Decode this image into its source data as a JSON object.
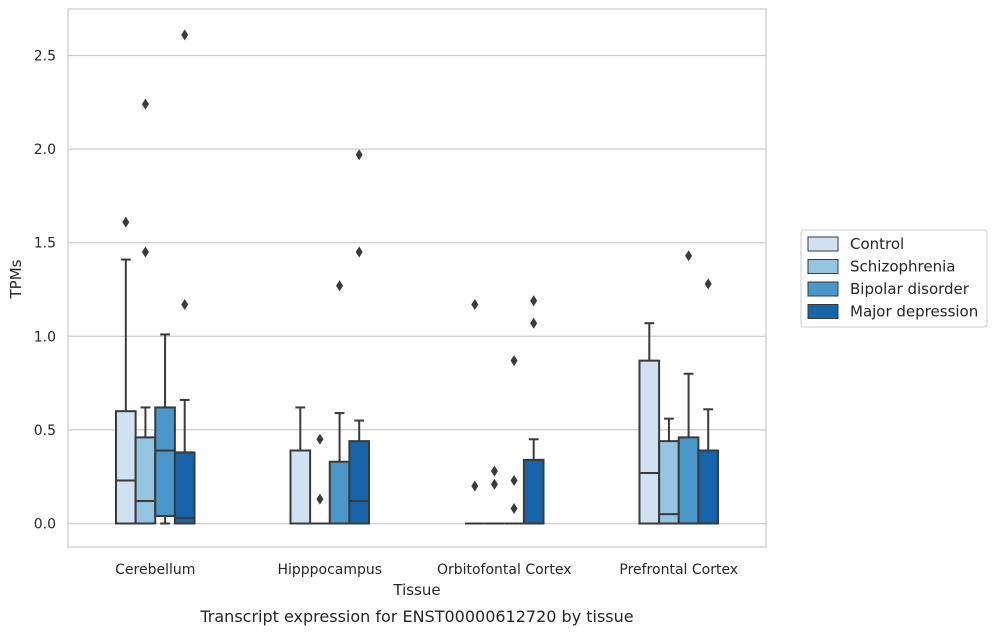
{
  "caption": "Transcript expression for ENST00000612720 by tissue",
  "chart_data": {
    "type": "box",
    "xlabel": "Tissue",
    "ylabel": "TPMs",
    "ylim": [
      -0.13,
      2.75
    ],
    "yticks": [
      "0.0",
      "0.5",
      "1.0",
      "1.5",
      "2.0",
      "2.5"
    ],
    "grid": true,
    "legend_position": "right",
    "categories": [
      "Cerebellum",
      "Hipppocampus",
      "Orbitofontal Cortex",
      "Prefrontal Cortex"
    ],
    "series": [
      {
        "name": "Control",
        "color": "#d0e1f2",
        "boxes": [
          {
            "whislo": 0.0,
            "q1": 0.0,
            "med": 0.23,
            "q3": 0.6,
            "whishi": 1.41,
            "fliers": [
              1.61
            ]
          },
          {
            "whislo": 0.0,
            "q1": 0.0,
            "med": 0.0,
            "q3": 0.39,
            "whishi": 0.62,
            "fliers": []
          },
          {
            "whislo": 0.0,
            "q1": 0.0,
            "med": 0.0,
            "q3": 0.0,
            "whishi": 0.0,
            "fliers": [
              0.2,
              1.17
            ]
          },
          {
            "whislo": 0.0,
            "q1": 0.0,
            "med": 0.27,
            "q3": 0.87,
            "whishi": 1.07,
            "fliers": []
          }
        ]
      },
      {
        "name": "Schizophrenia",
        "color": "#94c4df",
        "boxes": [
          {
            "whislo": 0.0,
            "q1": 0.0,
            "med": 0.12,
            "q3": 0.46,
            "whishi": 0.62,
            "fliers": [
              1.45,
              2.24
            ]
          },
          {
            "whislo": 0.0,
            "q1": 0.0,
            "med": 0.0,
            "q3": 0.0,
            "whishi": 0.0,
            "fliers": [
              0.13,
              0.45
            ]
          },
          {
            "whislo": 0.0,
            "q1": 0.0,
            "med": 0.0,
            "q3": 0.0,
            "whishi": 0.0,
            "fliers": [
              0.21,
              0.28
            ]
          },
          {
            "whislo": 0.0,
            "q1": 0.0,
            "med": 0.05,
            "q3": 0.44,
            "whishi": 0.56,
            "fliers": []
          }
        ]
      },
      {
        "name": "Bipolar disorder",
        "color": "#4a98c9",
        "boxes": [
          {
            "whislo": 0.0,
            "q1": 0.04,
            "med": 0.39,
            "q3": 0.62,
            "whishi": 1.01,
            "fliers": []
          },
          {
            "whislo": 0.0,
            "q1": 0.0,
            "med": 0.0,
            "q3": 0.33,
            "whishi": 0.59,
            "fliers": [
              1.27
            ]
          },
          {
            "whislo": 0.0,
            "q1": 0.0,
            "med": 0.0,
            "q3": 0.0,
            "whishi": 0.0,
            "fliers": [
              0.08,
              0.23,
              0.87
            ]
          },
          {
            "whislo": 0.0,
            "q1": 0.0,
            "med": 0.0,
            "q3": 0.46,
            "whishi": 0.8,
            "fliers": [
              1.43
            ]
          }
        ]
      },
      {
        "name": "Major depression",
        "color": "#1764ab",
        "boxes": [
          {
            "whislo": 0.0,
            "q1": 0.0,
            "med": 0.03,
            "q3": 0.38,
            "whishi": 0.66,
            "fliers": [
              1.17,
              2.61
            ]
          },
          {
            "whislo": 0.0,
            "q1": 0.0,
            "med": 0.12,
            "q3": 0.44,
            "whishi": 0.55,
            "fliers": [
              1.45,
              1.97
            ]
          },
          {
            "whislo": 0.0,
            "q1": 0.0,
            "med": 0.0,
            "q3": 0.34,
            "whishi": 0.45,
            "fliers": [
              1.07,
              1.19
            ]
          },
          {
            "whislo": 0.0,
            "q1": 0.0,
            "med": 0.0,
            "q3": 0.39,
            "whishi": 0.61,
            "fliers": [
              1.28
            ]
          }
        ]
      }
    ]
  }
}
